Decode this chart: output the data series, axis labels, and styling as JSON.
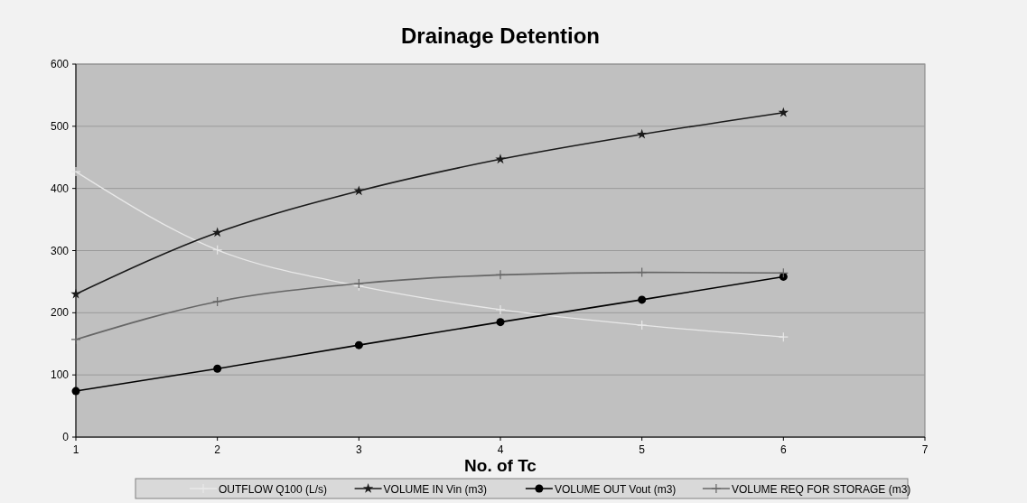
{
  "chart_data": {
    "type": "line",
    "title": "Drainage Detention",
    "xlabel": "No. of Tc",
    "x": [
      1,
      2,
      3,
      4,
      5,
      6
    ],
    "xlim": [
      1,
      7
    ],
    "xticks": [
      1,
      2,
      3,
      4,
      5,
      6,
      7
    ],
    "ylim": [
      0,
      600
    ],
    "yticks": [
      0,
      100,
      200,
      300,
      400,
      500,
      600
    ],
    "grid": "y",
    "legend": "bottom",
    "series": [
      {
        "name": "OUTFLOW Q100 (L/s)",
        "color": "#e8e8e8",
        "marker": "cross",
        "values": [
          427,
          301,
          243,
          205,
          180,
          161
        ]
      },
      {
        "name": "VOLUME IN  Vin (m3)",
        "color": "#1a1a1a",
        "marker": "star",
        "values": [
          230,
          329,
          396,
          447,
          487,
          522
        ]
      },
      {
        "name": "VOLUME OUT Vout (m3)",
        "color": "#000000",
        "marker": "circle",
        "values": [
          74,
          110,
          148,
          185,
          221,
          258
        ]
      },
      {
        "name": "VOLUME REQ FOR STORAGE (m3)",
        "color": "#666666",
        "marker": "cross",
        "values": [
          157,
          218,
          247,
          261,
          265,
          264
        ]
      }
    ]
  }
}
